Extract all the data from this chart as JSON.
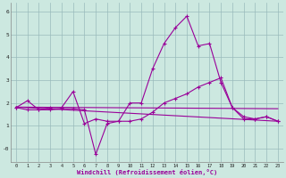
{
  "x": [
    0,
    1,
    2,
    3,
    4,
    5,
    6,
    7,
    8,
    9,
    10,
    11,
    12,
    13,
    14,
    15,
    16,
    17,
    18,
    19,
    20,
    21,
    22,
    23
  ],
  "line1": [
    1.8,
    2.1,
    1.7,
    1.8,
    1.8,
    2.5,
    1.1,
    1.3,
    1.2,
    1.2,
    2.0,
    2.0,
    3.5,
    4.6,
    5.3,
    5.8,
    4.5,
    4.6,
    2.9,
    1.8,
    1.3,
    1.3,
    1.4,
    1.2
  ],
  "line2": [
    1.8,
    1.7,
    1.7,
    1.7,
    1.75,
    1.75,
    1.7,
    -0.25,
    1.1,
    1.2,
    1.2,
    1.3,
    1.6,
    2.0,
    2.2,
    2.4,
    2.7,
    2.9,
    3.1,
    1.8,
    1.4,
    1.3,
    1.4,
    1.2
  ],
  "line3_x": [
    0,
    23
  ],
  "line3_y": [
    1.82,
    1.75
  ],
  "line4_x": [
    0,
    23
  ],
  "line4_y": [
    1.82,
    1.2
  ],
  "bg_color": "#cce8e0",
  "line_color": "#990099",
  "grid_color": "#99bbbb",
  "ylabel_values": [
    "-0",
    "1",
    "2",
    "3",
    "4",
    "5",
    "6"
  ],
  "yticks": [
    0,
    1,
    2,
    3,
    4,
    5,
    6
  ],
  "ylim": [
    -0.6,
    6.4
  ],
  "xlim": [
    -0.5,
    23.5
  ],
  "xlabel": "Windchill (Refroidissement éolien,°C)",
  "xtick_labels": [
    "0",
    "1",
    "2",
    "3",
    "4",
    "5",
    "6",
    "7",
    "8",
    "9",
    "10",
    "11",
    "12",
    "13",
    "14",
    "15",
    "16",
    "17",
    "18",
    "19",
    "20",
    "21",
    "22",
    "23"
  ],
  "marker": "+"
}
